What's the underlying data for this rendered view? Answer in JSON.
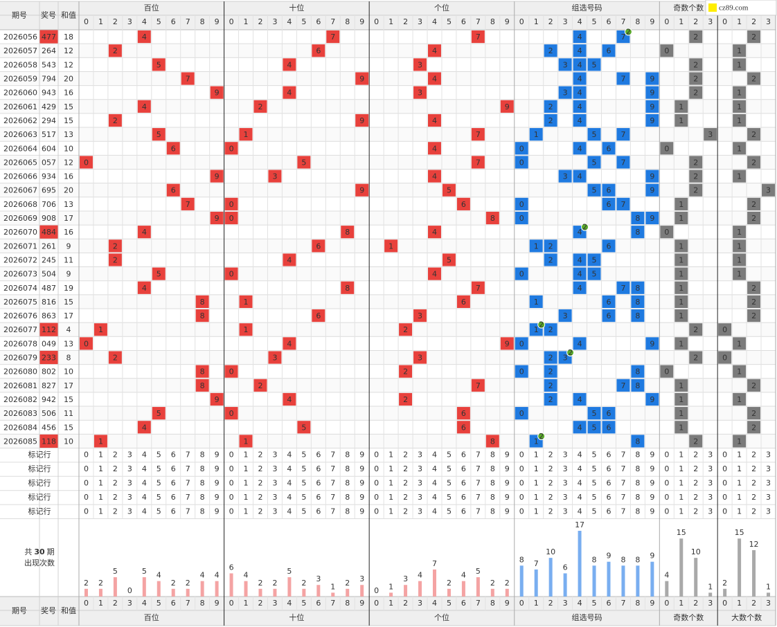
{
  "header": {
    "issue": "期号",
    "number": "奖号",
    "sum": "和值"
  },
  "sections": [
    {
      "name": "百位",
      "digits": [
        0,
        1,
        2,
        3,
        4,
        5,
        6,
        7,
        8,
        9
      ],
      "color": "#e8413c",
      "bar_color": "#f4a3a3",
      "label_color": "#e8413c"
    },
    {
      "name": "十位",
      "digits": [
        0,
        1,
        2,
        3,
        4,
        5,
        6,
        7,
        8,
        9
      ],
      "color": "#e8413c",
      "bar_color": "#f4a3a3",
      "label_color": "#e8413c"
    },
    {
      "name": "个位",
      "digits": [
        0,
        1,
        2,
        3,
        4,
        5,
        6,
        7,
        8,
        9
      ],
      "color": "#e8413c",
      "bar_color": "#f4a3a3",
      "label_color": "#e8413c"
    },
    {
      "name": "组选号码",
      "digits": [
        0,
        1,
        2,
        3,
        4,
        5,
        6,
        7,
        8,
        9
      ],
      "color": "#1f7ae0",
      "bar_color": "#79aef0",
      "label_color": "#1f7ae0"
    },
    {
      "name": "奇数个数",
      "digits": [
        0,
        1,
        2,
        3
      ],
      "color": "#7b7b7b",
      "bar_color": "#a9a9a9",
      "label_color": "#555555"
    },
    {
      "name": "大数个数",
      "digits": [
        0,
        1,
        2,
        3
      ],
      "color": "#7b7b7b",
      "bar_color": "#a9a9a9",
      "label_color": "#555555"
    }
  ],
  "rows": [
    {
      "issue": "2026056",
      "number": "477",
      "sum": 18,
      "positions": [
        4,
        7,
        7
      ],
      "group": [
        4,
        7
      ],
      "odd": 2,
      "big": 2,
      "pair": {
        "digit": 7,
        "count": 2
      }
    },
    {
      "issue": "2026057",
      "number": "264",
      "sum": 12,
      "positions": [
        2,
        6,
        4
      ],
      "group": [
        2,
        4,
        6
      ],
      "odd": 0,
      "big": 1
    },
    {
      "issue": "2026058",
      "number": "543",
      "sum": 12,
      "positions": [
        5,
        4,
        3
      ],
      "group": [
        3,
        4,
        5
      ],
      "odd": 2,
      "big": 1
    },
    {
      "issue": "2026059",
      "number": "794",
      "sum": 20,
      "positions": [
        7,
        9,
        4
      ],
      "group": [
        4,
        7,
        9
      ],
      "odd": 2,
      "big": 2
    },
    {
      "issue": "2026060",
      "number": "943",
      "sum": 16,
      "positions": [
        9,
        4,
        3
      ],
      "group": [
        3,
        4,
        9
      ],
      "odd": 2,
      "big": 1
    },
    {
      "issue": "2026061",
      "number": "429",
      "sum": 15,
      "positions": [
        4,
        2,
        9
      ],
      "group": [
        2,
        4,
        9
      ],
      "odd": 1,
      "big": 1
    },
    {
      "issue": "2026062",
      "number": "294",
      "sum": 15,
      "positions": [
        2,
        9,
        4
      ],
      "group": [
        2,
        4,
        9
      ],
      "odd": 1,
      "big": 1
    },
    {
      "issue": "2026063",
      "number": "517",
      "sum": 13,
      "positions": [
        5,
        1,
        7
      ],
      "group": [
        1,
        5,
        7
      ],
      "odd": 3,
      "big": 2
    },
    {
      "issue": "2026064",
      "number": "604",
      "sum": 10,
      "positions": [
        6,
        0,
        4
      ],
      "group": [
        0,
        4,
        6
      ],
      "odd": 0,
      "big": 1
    },
    {
      "issue": "2026065",
      "number": "057",
      "sum": 12,
      "positions": [
        0,
        5,
        7
      ],
      "group": [
        0,
        5,
        7
      ],
      "odd": 2,
      "big": 2
    },
    {
      "issue": "2026066",
      "number": "934",
      "sum": 16,
      "positions": [
        9,
        3,
        4
      ],
      "group": [
        3,
        4,
        9
      ],
      "odd": 2,
      "big": 1
    },
    {
      "issue": "2026067",
      "number": "695",
      "sum": 20,
      "positions": [
        6,
        9,
        5
      ],
      "group": [
        5,
        6,
        9
      ],
      "odd": 2,
      "big": 3
    },
    {
      "issue": "2026068",
      "number": "706",
      "sum": 13,
      "positions": [
        7,
        0,
        6
      ],
      "group": [
        0,
        6,
        7
      ],
      "odd": 1,
      "big": 2
    },
    {
      "issue": "2026069",
      "number": "908",
      "sum": 17,
      "positions": [
        9,
        0,
        8
      ],
      "group": [
        0,
        8,
        9
      ],
      "odd": 1,
      "big": 2
    },
    {
      "issue": "2026070",
      "number": "484",
      "sum": 16,
      "positions": [
        4,
        8,
        4
      ],
      "group": [
        4,
        8
      ],
      "odd": 0,
      "big": 1,
      "pair": {
        "digit": 4,
        "count": 2
      }
    },
    {
      "issue": "2026071",
      "number": "261",
      "sum": 9,
      "positions": [
        2,
        6,
        1
      ],
      "group": [
        1,
        2,
        6
      ],
      "odd": 1,
      "big": 1
    },
    {
      "issue": "2026072",
      "number": "245",
      "sum": 11,
      "positions": [
        2,
        4,
        5
      ],
      "group": [
        2,
        4,
        5
      ],
      "odd": 1,
      "big": 1
    },
    {
      "issue": "2026073",
      "number": "504",
      "sum": 9,
      "positions": [
        5,
        0,
        4
      ],
      "group": [
        0,
        4,
        5
      ],
      "odd": 1,
      "big": 1
    },
    {
      "issue": "2026074",
      "number": "487",
      "sum": 19,
      "positions": [
        4,
        8,
        7
      ],
      "group": [
        4,
        7,
        8
      ],
      "odd": 1,
      "big": 2
    },
    {
      "issue": "2026075",
      "number": "816",
      "sum": 15,
      "positions": [
        8,
        1,
        6
      ],
      "group": [
        1,
        6,
        8
      ],
      "odd": 1,
      "big": 2
    },
    {
      "issue": "2026076",
      "number": "863",
      "sum": 17,
      "positions": [
        8,
        6,
        3
      ],
      "group": [
        3,
        6,
        8
      ],
      "odd": 1,
      "big": 2
    },
    {
      "issue": "2026077",
      "number": "112",
      "sum": 4,
      "positions": [
        1,
        1,
        2
      ],
      "group": [
        1,
        2
      ],
      "odd": 2,
      "big": 0,
      "pair": {
        "digit": 1,
        "count": 2
      }
    },
    {
      "issue": "2026078",
      "number": "049",
      "sum": 13,
      "positions": [
        0,
        4,
        9
      ],
      "group": [
        0,
        4,
        9
      ],
      "odd": 1,
      "big": 1
    },
    {
      "issue": "2026079",
      "number": "233",
      "sum": 8,
      "positions": [
        2,
        3,
        3
      ],
      "group": [
        2,
        3
      ],
      "odd": 2,
      "big": 0,
      "pair": {
        "digit": 3,
        "count": 2
      }
    },
    {
      "issue": "2026080",
      "number": "802",
      "sum": 10,
      "positions": [
        8,
        0,
        2
      ],
      "group": [
        0,
        2,
        8
      ],
      "odd": 0,
      "big": 1
    },
    {
      "issue": "2026081",
      "number": "827",
      "sum": 17,
      "positions": [
        8,
        2,
        7
      ],
      "group": [
        2,
        7,
        8
      ],
      "odd": 1,
      "big": 2
    },
    {
      "issue": "2026082",
      "number": "942",
      "sum": 15,
      "positions": [
        9,
        4,
        2
      ],
      "group": [
        2,
        4,
        9
      ],
      "odd": 1,
      "big": 1
    },
    {
      "issue": "2026083",
      "number": "506",
      "sum": 11,
      "positions": [
        5,
        0,
        6
      ],
      "group": [
        0,
        5,
        6
      ],
      "odd": 1,
      "big": 2
    },
    {
      "issue": "2026084",
      "number": "456",
      "sum": 15,
      "positions": [
        4,
        5,
        6
      ],
      "group": [
        4,
        5,
        6
      ],
      "odd": 1,
      "big": 2
    },
    {
      "issue": "2026085",
      "number": "118",
      "sum": 10,
      "positions": [
        1,
        1,
        8
      ],
      "group": [
        1,
        8
      ],
      "odd": 2,
      "big": 1,
      "pair": {
        "digit": 1,
        "count": 2
      }
    }
  ],
  "marker_rows": [
    "标记行",
    "标记行",
    "标记行",
    "标记行",
    "标记行"
  ],
  "stats": {
    "prefix": "共",
    "periods": 30,
    "suffix": "期",
    "caption": "出现次数",
    "counts": [
      [
        2,
        2,
        5,
        0,
        5,
        4,
        2,
        2,
        4,
        4
      ],
      [
        6,
        4,
        2,
        2,
        5,
        2,
        3,
        1,
        2,
        3
      ],
      [
        0,
        1,
        3,
        4,
        7,
        2,
        4,
        5,
        2,
        2
      ],
      [
        8,
        7,
        10,
        6,
        17,
        8,
        9,
        8,
        8,
        9
      ],
      [
        4,
        15,
        10,
        1
      ],
      [
        2,
        15,
        12,
        1
      ]
    ]
  },
  "logo": "cz89.com"
}
